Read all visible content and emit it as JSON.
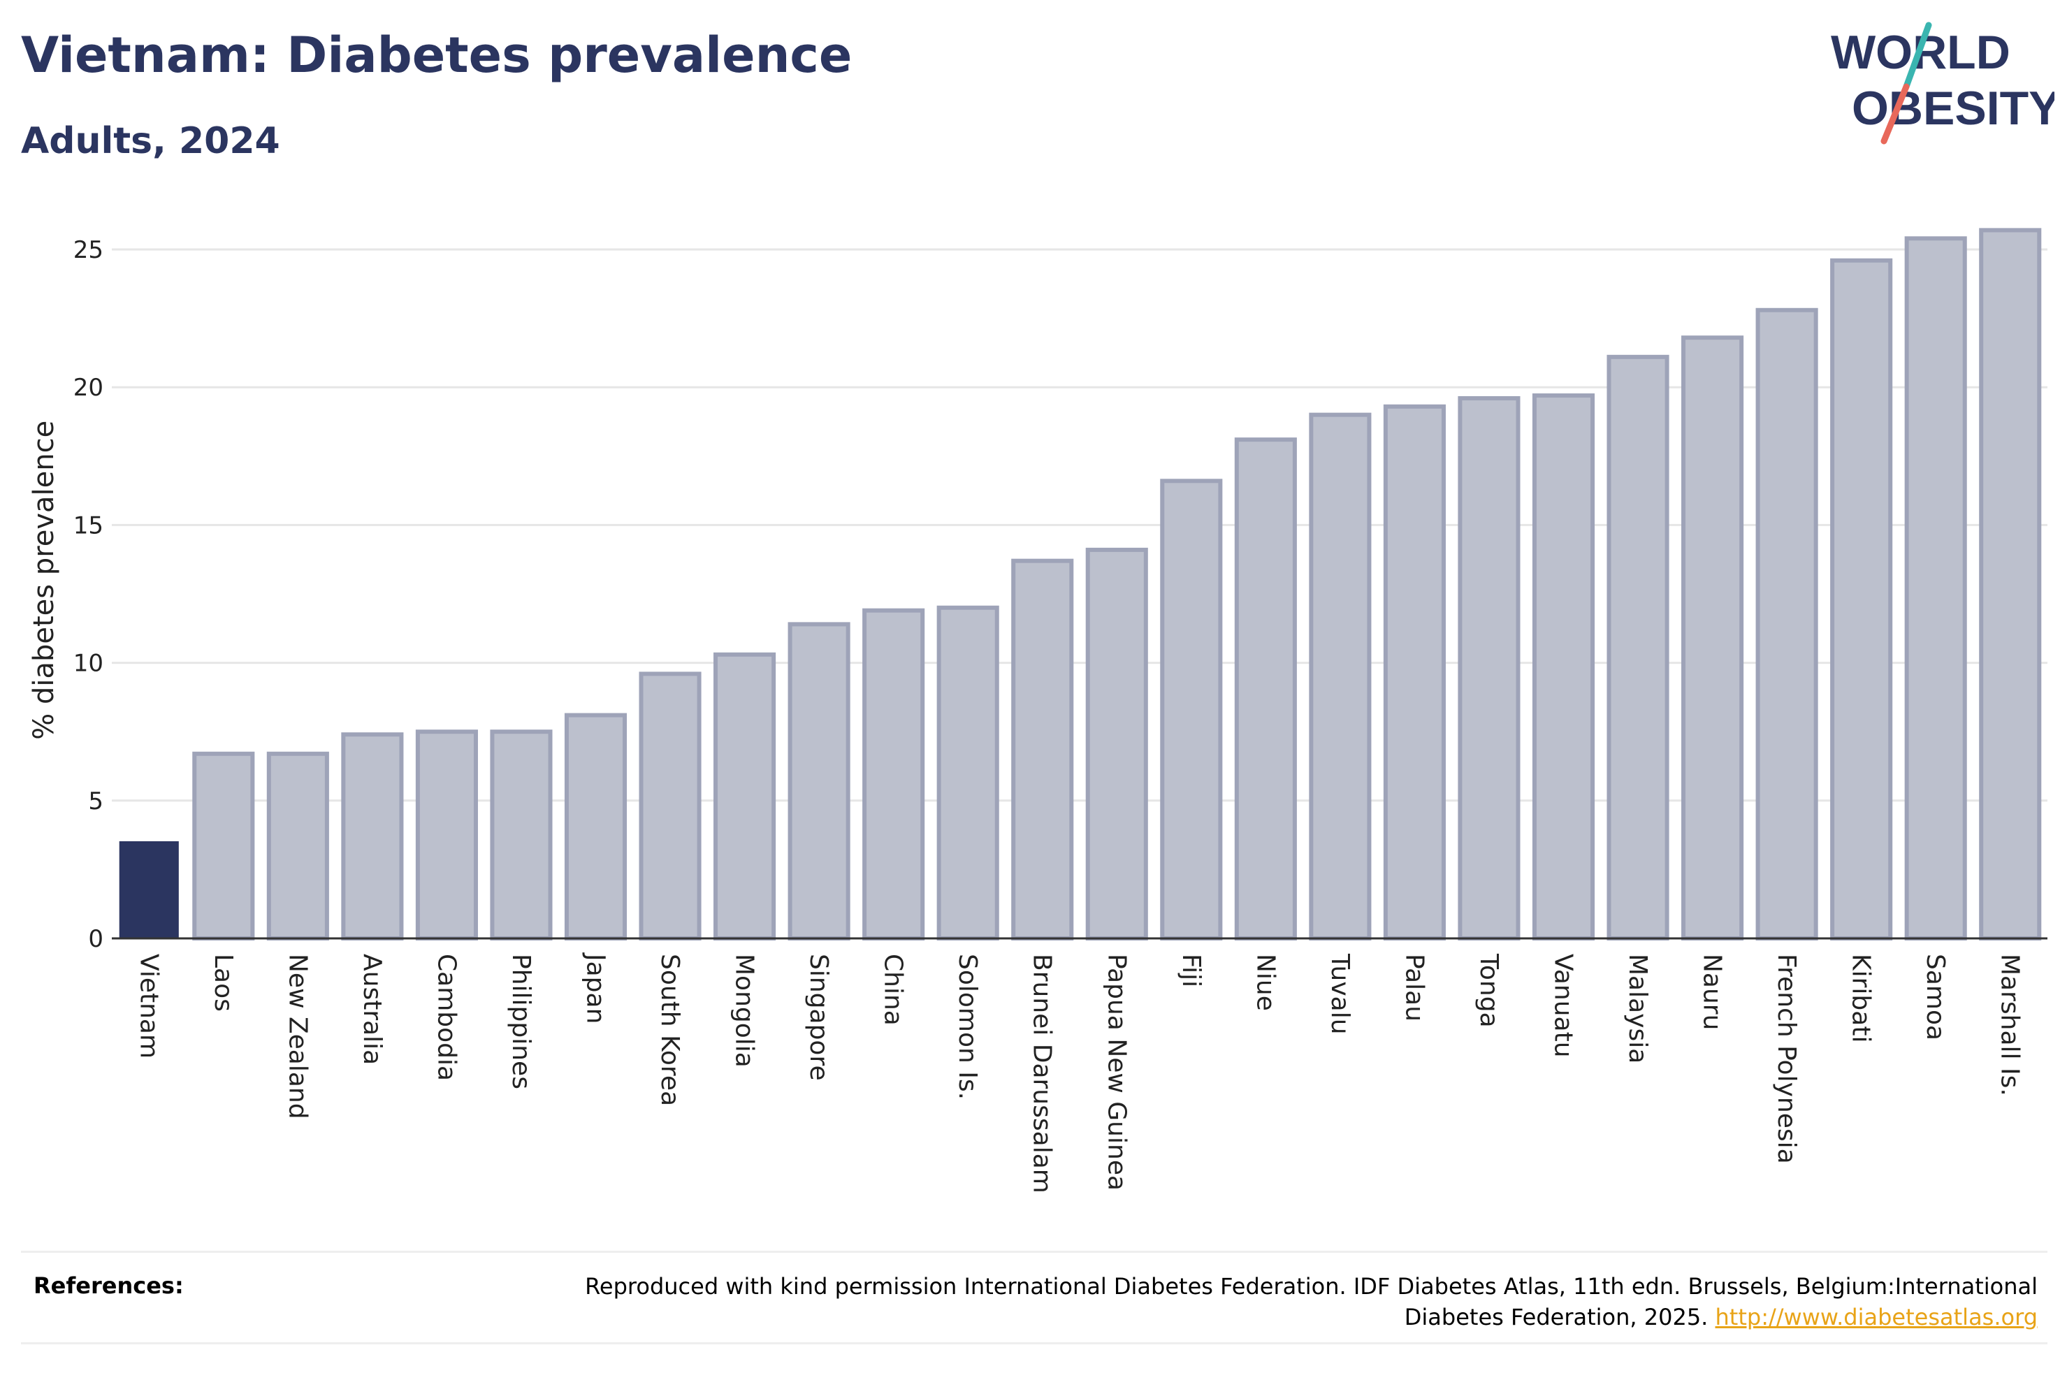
{
  "header": {
    "title": "Vietnam: Diabetes prevalence",
    "subtitle": "Adults, 2024"
  },
  "logo": {
    "line1": "WORLD",
    "line2": "OBESITY",
    "colors": {
      "text": "#2b3560",
      "slash_top": "#3ab5b0",
      "slash_bottom": "#e8685a"
    }
  },
  "chart_data": {
    "type": "bar",
    "ylabel": "% diabetes prevalence",
    "xlabel": "",
    "ylim": [
      0,
      26
    ],
    "yticks": [
      0,
      5,
      10,
      15,
      20,
      25
    ],
    "grid": true,
    "highlight": "Vietnam",
    "colors": {
      "highlight": "#2b3560",
      "other_fill": "#bcc0cd",
      "other_edge": "#9ea3b8",
      "grid": "#e6e6e6",
      "axis": "#333333"
    },
    "categories": [
      "Vietnam",
      "Laos",
      "New Zealand",
      "Australia",
      "Cambodia",
      "Philippines",
      "Japan",
      "South Korea",
      "Mongolia",
      "Singapore",
      "China",
      "Solomon Is.",
      "Brunei Darussalam",
      "Papua New Guinea",
      "Fiji",
      "Niue",
      "Tuvalu",
      "Palau",
      "Tonga",
      "Vanuatu",
      "Malaysia",
      "Nauru",
      "French Polynesia",
      "Kiribati",
      "Samoa",
      "Marshall Is."
    ],
    "values": [
      3.5,
      6.7,
      6.7,
      7.4,
      7.5,
      7.5,
      8.1,
      9.6,
      10.3,
      11.4,
      11.9,
      12.0,
      13.7,
      14.1,
      16.6,
      18.1,
      19.0,
      19.3,
      19.6,
      19.7,
      21.1,
      21.8,
      22.8,
      24.6,
      25.4,
      25.7
    ]
  },
  "references": {
    "label": "References:",
    "text": "Reproduced with kind permission International Diabetes Federation. IDF Diabetes Atlas, 11th edn. Brussels, Belgium:International Diabetes Federation, 2025.",
    "link": "http://www.diabetesatlas.org"
  }
}
